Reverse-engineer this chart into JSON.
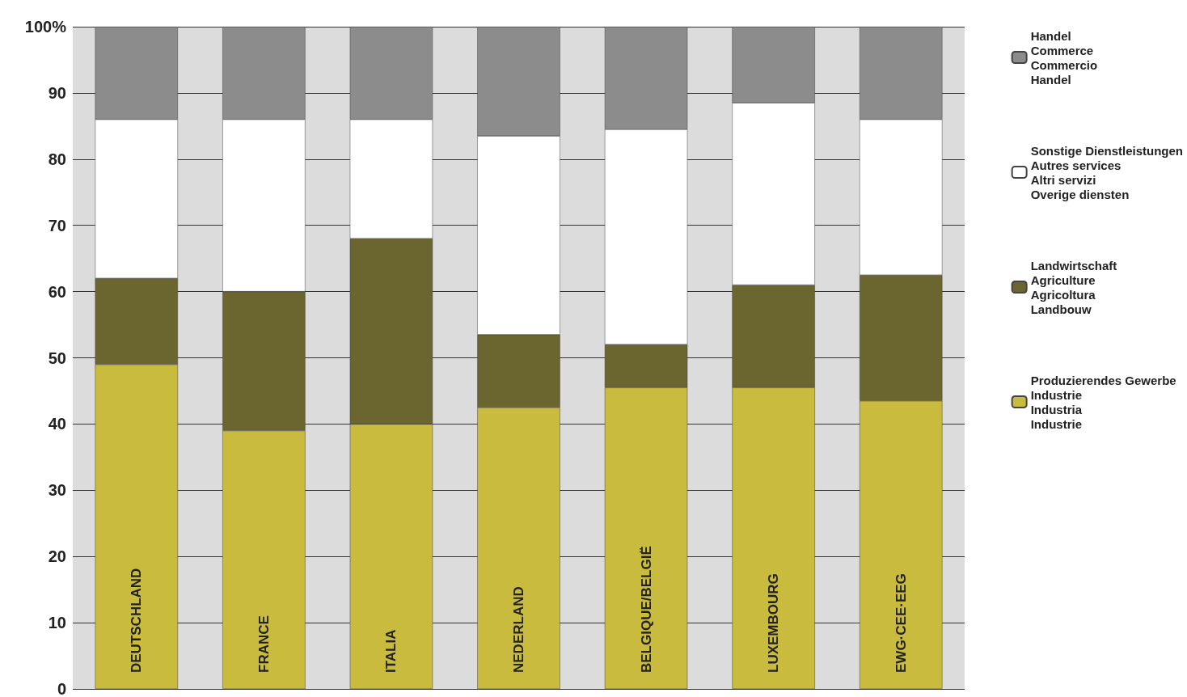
{
  "chart_data": {
    "type": "bar",
    "stacked": true,
    "categories": [
      "DEUTSCHLAND",
      "FRANCE",
      "ITALIA",
      "NEDERLAND",
      "BELGIQUE/BELGIË",
      "LUXEMBOURG",
      "EWG·CEE·EEG"
    ],
    "series": [
      {
        "name": "Produzierendes Gewerbe\nIndustrie\nIndustria\nIndustrie",
        "color": "#c9bb3e",
        "values": [
          49,
          39,
          40,
          42.5,
          45.5,
          45.5,
          43.5
        ]
      },
      {
        "name": "Landwirtschaft\nAgriculture\nAgricoltura\nLandbouw",
        "color": "#6b6630",
        "values": [
          13,
          21,
          28,
          11,
          6.5,
          15.5,
          19
        ]
      },
      {
        "name": "Sonstige Dienstleistungen\nAutres services\nAltri servizi\nOverige diensten",
        "color": "#ffffff",
        "values": [
          24,
          26,
          18,
          30,
          32.5,
          27.5,
          23.5
        ]
      },
      {
        "name": "Handel\nCommerce\nCommercio\nHandel",
        "color": "#8c8c8c",
        "values": [
          14,
          14,
          14,
          16.5,
          15.5,
          11.5,
          14
        ]
      }
    ],
    "ylim": [
      0,
      100
    ],
    "yticks": [
      0,
      10,
      20,
      30,
      40,
      50,
      60,
      70,
      80,
      90,
      {
        "value": 100,
        "label": "100%"
      }
    ],
    "grid": "y",
    "legend": "right"
  }
}
